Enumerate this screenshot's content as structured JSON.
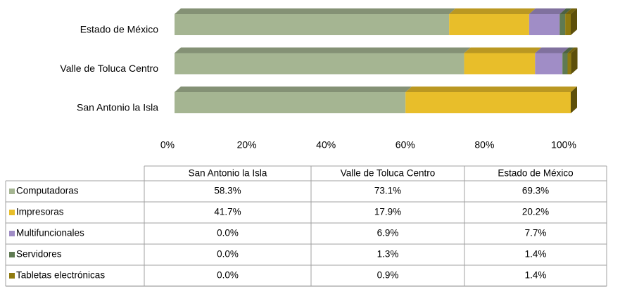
{
  "chart_data": {
    "type": "bar",
    "orientation": "horizontal",
    "stacked": true,
    "categories": [
      "San Antonio la Isla",
      "Valle de Toluca Centro",
      "Estado de México"
    ],
    "series": [
      {
        "name": "Computadoras",
        "color": "#a5b592",
        "values": [
          58.3,
          73.1,
          69.3
        ],
        "value_labels": [
          "58.3%",
          "73.1%",
          "69.3%"
        ]
      },
      {
        "name": "Impresoras",
        "color": "#e8be2a",
        "values": [
          41.7,
          17.9,
          20.2
        ],
        "value_labels": [
          "41.7%",
          "17.9%",
          "20.2%"
        ]
      },
      {
        "name": "Multifuncionales",
        "color": "#a08dc6",
        "values": [
          0.0,
          6.9,
          7.7
        ],
        "value_labels": [
          "0.0%",
          "6.9%",
          "7.7%"
        ]
      },
      {
        "name": "Servidores",
        "color": "#5f7a52",
        "values": [
          0.0,
          1.3,
          1.4
        ],
        "value_labels": [
          "0.0%",
          "1.3%",
          "1.4%"
        ]
      },
      {
        "name": "Tabletas electrónicas",
        "color": "#8f7a10",
        "values": [
          0.0,
          0.9,
          1.4
        ],
        "value_labels": [
          "0.0%",
          "0.9%",
          "1.4%"
        ]
      }
    ],
    "xlim": [
      0,
      100
    ],
    "xticks": [
      {
        "value": 0,
        "label": "0%"
      },
      {
        "value": 20,
        "label": "20%"
      },
      {
        "value": 40,
        "label": "40%"
      },
      {
        "value": 60,
        "label": "60%"
      },
      {
        "value": 80,
        "label": "80%"
      },
      {
        "value": 100,
        "label": "100%"
      }
    ]
  }
}
